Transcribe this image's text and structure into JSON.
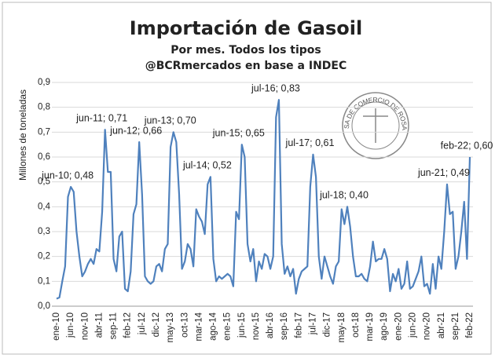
{
  "chart_data": {
    "type": "line",
    "title": "Importación de Gasoil",
    "subtitle": [
      "Por mes. Todos los tipos",
      "@BCRmercados en base a INDEC"
    ],
    "y_label": "Millones de toneladas",
    "stamp": "BOLSA DE COMERCIO DE ROSARIO",
    "categories": [
      "ene-10",
      null,
      null,
      null,
      null,
      "jun-10",
      null,
      null,
      null,
      null,
      "nov-10",
      null,
      null,
      null,
      null,
      "abr-11",
      null,
      null,
      null,
      null,
      "sep-11",
      null,
      null,
      null,
      null,
      "feb-12",
      null,
      null,
      null,
      null,
      "jul-12",
      null,
      null,
      null,
      null,
      "dic-12",
      null,
      null,
      null,
      null,
      "may-13",
      null,
      null,
      null,
      null,
      "oct-13",
      null,
      null,
      null,
      null,
      "mar-14",
      null,
      null,
      null,
      null,
      "ago-14",
      null,
      null,
      null,
      null,
      "ene-15",
      null,
      null,
      null,
      null,
      "jun-15",
      null,
      null,
      null,
      null,
      "nov-15",
      null,
      null,
      null,
      null,
      "abr-16",
      null,
      null,
      null,
      null,
      "sep-16",
      null,
      null,
      null,
      null,
      "feb-17",
      null,
      null,
      null,
      null,
      "jul-17",
      null,
      null,
      null,
      null,
      "dic-17",
      null,
      null,
      null,
      null,
      "may-18",
      null,
      null,
      null,
      null,
      "oct-18",
      null,
      null,
      null,
      null,
      "mar-19",
      null,
      null,
      null,
      null,
      "ago-19",
      null,
      null,
      null,
      null,
      "ene-20",
      null,
      null,
      null,
      null,
      "jun-20",
      null,
      null,
      null,
      null,
      "nov-20",
      null,
      null,
      null,
      null,
      "abr-21",
      null,
      null,
      null,
      null,
      "sep-21",
      null,
      null,
      null,
      null,
      "feb-22"
    ],
    "series": [
      {
        "name": "Importación de Gasoil",
        "color": "#4f81bd",
        "values": [
          0.03,
          0.035,
          0.1,
          0.16,
          0.44,
          0.48,
          0.46,
          0.3,
          0.2,
          0.12,
          0.14,
          0.17,
          0.19,
          0.17,
          0.23,
          0.22,
          0.38,
          0.71,
          0.54,
          0.54,
          0.19,
          0.14,
          0.28,
          0.3,
          0.07,
          0.06,
          0.14,
          0.37,
          0.41,
          0.66,
          0.45,
          0.12,
          0.1,
          0.09,
          0.1,
          0.16,
          0.17,
          0.14,
          0.23,
          0.25,
          0.64,
          0.7,
          0.66,
          0.45,
          0.15,
          0.18,
          0.25,
          0.23,
          0.16,
          0.39,
          0.36,
          0.34,
          0.29,
          0.49,
          0.52,
          0.19,
          0.1,
          0.12,
          0.11,
          0.12,
          0.13,
          0.12,
          0.08,
          0.38,
          0.35,
          0.65,
          0.6,
          0.25,
          0.18,
          0.23,
          0.1,
          0.18,
          0.15,
          0.21,
          0.2,
          0.15,
          0.2,
          0.76,
          0.83,
          0.25,
          0.13,
          0.16,
          0.12,
          0.15,
          0.05,
          0.11,
          0.14,
          0.15,
          0.16,
          0.48,
          0.61,
          0.52,
          0.2,
          0.11,
          0.2,
          0.16,
          0.12,
          0.09,
          0.16,
          0.18,
          0.39,
          0.33,
          0.4,
          0.32,
          0.2,
          0.12,
          0.12,
          0.13,
          0.11,
          0.1,
          0.16,
          0.26,
          0.18,
          0.19,
          0.19,
          0.23,
          0.19,
          0.06,
          0.13,
          0.1,
          0.15,
          0.07,
          0.09,
          0.18,
          0.07,
          0.08,
          0.11,
          0.14,
          0.2,
          0.08,
          0.09,
          0.05,
          0.17,
          0.07,
          0.2,
          0.15,
          0.3,
          0.49,
          0.37,
          0.38,
          0.15,
          0.2,
          0.3,
          0.42,
          0.19,
          0.6
        ]
      }
    ],
    "annotations": [
      {
        "text": "jun-10; 0,48",
        "point": 5
      },
      {
        "text": "jun-11; 0,71",
        "point": 17
      },
      {
        "text": "jun-12; 0,66",
        "point": 29
      },
      {
        "text": "jun-13; 0,70",
        "point": 41
      },
      {
        "text": "jul-14; 0,52",
        "point": 54
      },
      {
        "text": "jun-15; 0,65",
        "point": 65
      },
      {
        "text": "jul-16; 0,83",
        "point": 78
      },
      {
        "text": "jul-17; 0,61",
        "point": 90
      },
      {
        "text": "jul-18; 0,40",
        "point": 102
      },
      {
        "text": "jun-21; 0,49",
        "point": 137
      },
      {
        "text": "feb-22; 0,60",
        "point": 145
      }
    ],
    "ylim": [
      0,
      0.9
    ],
    "yticks": [
      {
        "value": 0,
        "label": "0,0"
      },
      {
        "value": 0.1,
        "label": "0,1"
      },
      {
        "value": 0.2,
        "label": "0,2"
      },
      {
        "value": 0.3,
        "label": "0,3"
      },
      {
        "value": 0.4,
        "label": "0,4"
      },
      {
        "value": 0.5,
        "label": "0,5"
      },
      {
        "value": 0.6,
        "label": "0,6"
      },
      {
        "value": 0.7,
        "label": "0,7"
      },
      {
        "value": 0.8,
        "label": "0,8"
      },
      {
        "value": 0.9,
        "label": "0,9"
      }
    ],
    "grid": true
  }
}
